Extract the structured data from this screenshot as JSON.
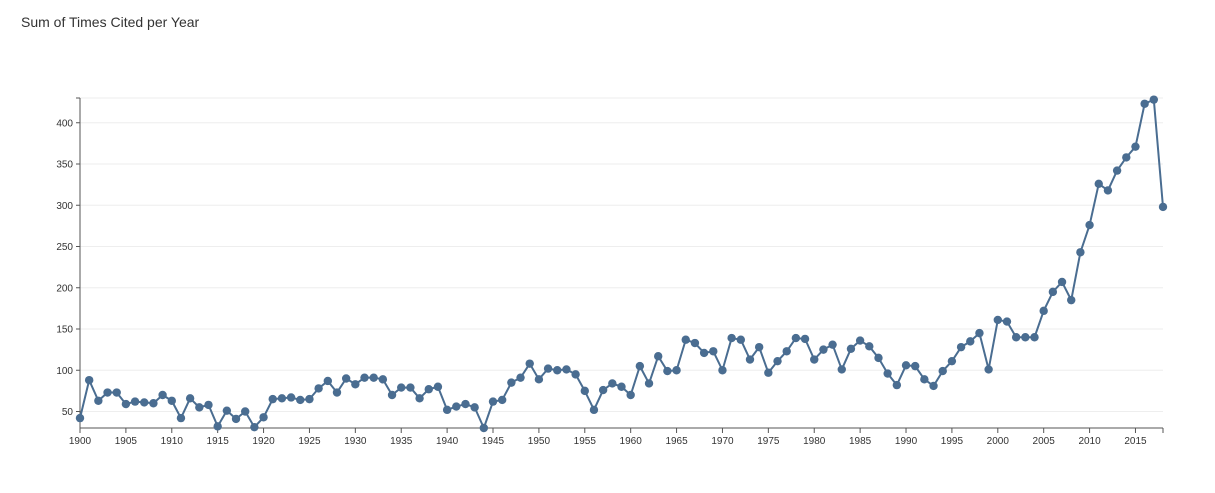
{
  "title": "Sum of Times Cited per Year",
  "colors": {
    "series": "#4a6d91",
    "grid": "#eeeeee",
    "axis": "#555555"
  },
  "chart_data": {
    "type": "line",
    "title": "Sum of Times Cited per Year",
    "xlabel": "",
    "ylabel": "",
    "xlim": [
      1900,
      2018
    ],
    "ylim": [
      30,
      430
    ],
    "grid": true,
    "x_ticks": [
      1900,
      1905,
      1910,
      1915,
      1920,
      1925,
      1930,
      1935,
      1940,
      1945,
      1950,
      1955,
      1960,
      1965,
      1970,
      1975,
      1980,
      1985,
      1990,
      1995,
      2000,
      2005,
      2010,
      2015
    ],
    "y_ticks": [
      50,
      100,
      150,
      200,
      250,
      300,
      350,
      400
    ],
    "x": [
      1900,
      1901,
      1902,
      1903,
      1904,
      1905,
      1906,
      1907,
      1908,
      1909,
      1910,
      1911,
      1912,
      1913,
      1914,
      1915,
      1916,
      1917,
      1918,
      1919,
      1920,
      1921,
      1922,
      1923,
      1924,
      1925,
      1926,
      1927,
      1928,
      1929,
      1930,
      1931,
      1932,
      1933,
      1934,
      1935,
      1936,
      1937,
      1938,
      1939,
      1940,
      1941,
      1942,
      1943,
      1944,
      1945,
      1946,
      1947,
      1948,
      1949,
      1950,
      1951,
      1952,
      1953,
      1954,
      1955,
      1956,
      1957,
      1958,
      1959,
      1960,
      1961,
      1962,
      1963,
      1964,
      1965,
      1966,
      1967,
      1968,
      1969,
      1970,
      1971,
      1972,
      1973,
      1974,
      1975,
      1976,
      1977,
      1978,
      1979,
      1980,
      1981,
      1982,
      1983,
      1984,
      1985,
      1986,
      1987,
      1988,
      1989,
      1990,
      1991,
      1992,
      1993,
      1994,
      1995,
      1996,
      1997,
      1998,
      1999,
      2000,
      2001,
      2002,
      2003,
      2004,
      2005,
      2006,
      2007,
      2008,
      2009,
      2010,
      2011,
      2012,
      2013,
      2014,
      2015,
      2016,
      2017,
      2018
    ],
    "values": [
      42,
      88,
      63,
      73,
      73,
      59,
      62,
      61,
      60,
      70,
      63,
      42,
      66,
      55,
      58,
      32,
      51,
      41,
      50,
      31,
      43,
      65,
      66,
      67,
      64,
      65,
      78,
      87,
      73,
      90,
      83,
      91,
      91,
      89,
      70,
      79,
      79,
      66,
      77,
      80,
      52,
      56,
      59,
      55,
      30,
      62,
      64,
      85,
      91,
      108,
      89,
      102,
      100,
      101,
      95,
      75,
      52,
      76,
      84,
      80,
      70,
      105,
      84,
      117,
      99,
      100,
      137,
      133,
      121,
      123,
      100,
      139,
      137,
      113,
      128,
      97,
      111,
      123,
      139,
      138,
      113,
      125,
      131,
      101,
      126,
      136,
      129,
      115,
      96,
      82,
      106,
      105,
      89,
      81,
      99,
      111,
      128,
      135,
      145,
      101,
      161,
      159,
      140,
      140,
      140,
      172,
      195,
      207,
      185,
      243,
      276,
      326,
      318,
      342,
      358,
      371,
      423,
      428,
      298
    ]
  }
}
